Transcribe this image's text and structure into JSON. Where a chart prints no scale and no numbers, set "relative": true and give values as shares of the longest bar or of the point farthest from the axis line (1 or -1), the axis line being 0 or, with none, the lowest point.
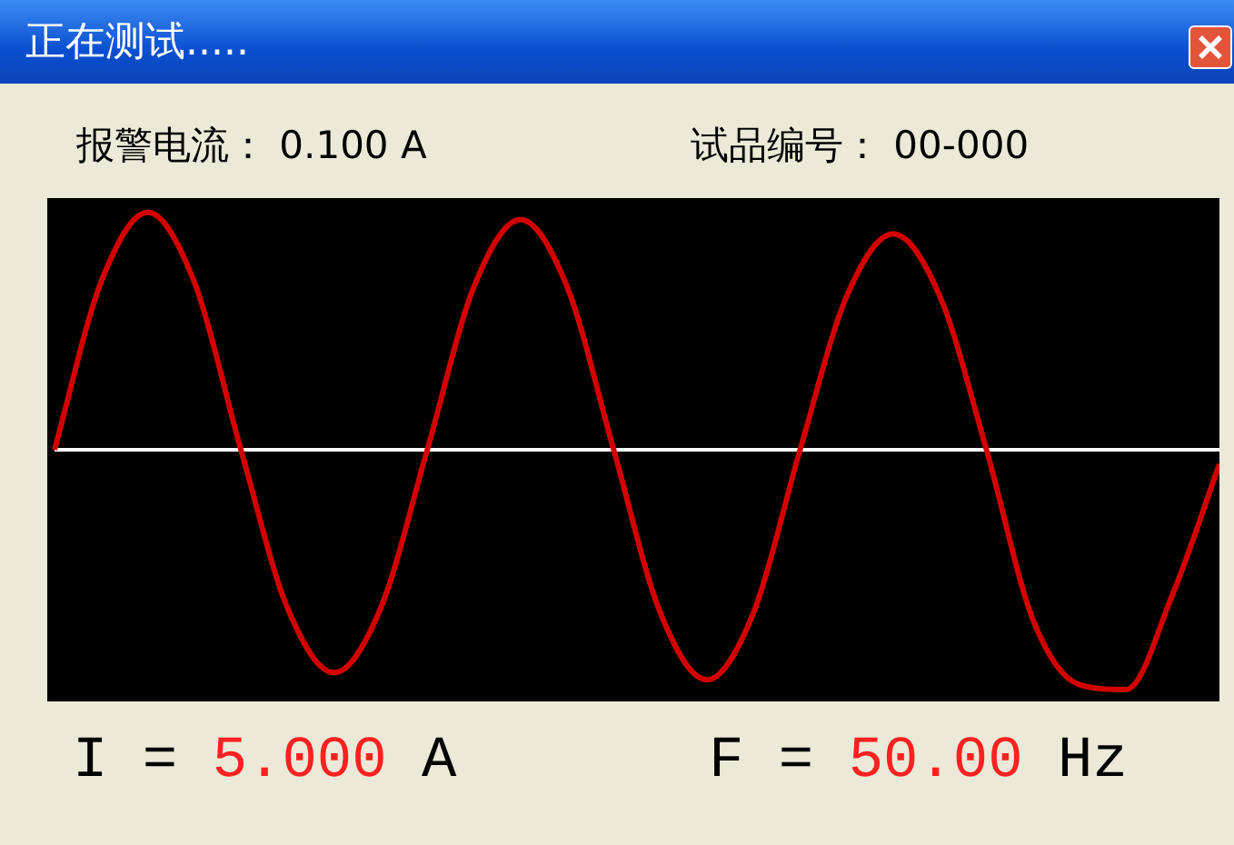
{
  "chart_data": {
    "type": "line",
    "title": "正在测试.....",
    "annotations": [
      "报警电流：  0.100 A",
      "试品编号：  00-000",
      "I = 5.000 A",
      "F = 50.00 Hz"
    ],
    "categories": [
      null,
      null,
      null,
      null,
      null,
      null,
      null,
      null,
      null,
      null,
      null,
      null,
      null,
      null,
      null,
      null,
      null,
      null,
      null,
      null,
      null,
      null,
      null,
      null,
      null,
      null
    ],
    "series": [
      {
        "color": "#d40000",
        "values": [
          0,
          0.7,
          0.99,
          0.7,
          0,
          -0.66,
          -0.93,
          -0.66,
          0,
          0.68,
          0.96,
          0.68,
          0,
          -0.68,
          -0.96,
          -0.68,
          0,
          0.64,
          0.9,
          0.64,
          0,
          -0.71,
          -0.98,
          -1,
          -0.6,
          -0.06
        ]
      }
    ],
    "relative": true,
    "marker": "none",
    "line_style": "solid",
    "legend": false
  }
}
